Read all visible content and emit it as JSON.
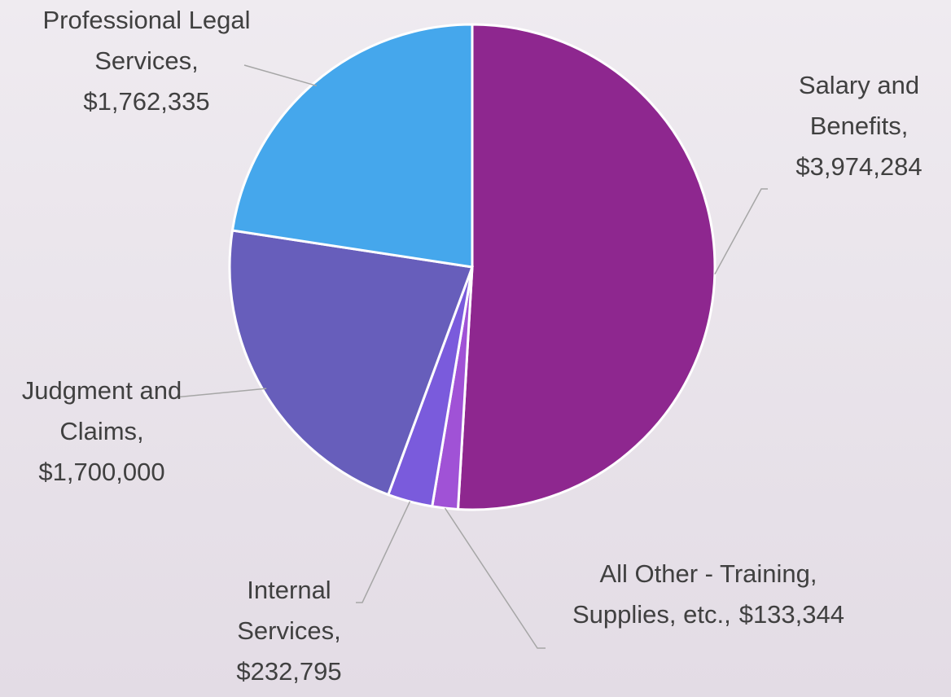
{
  "chart_data": {
    "type": "pie",
    "categories": [
      "Salary and Benefits,",
      "All Other - Training, Supplies, etc.,",
      "Internal Services,",
      "Judgment and Claims,",
      "Professional Legal Services,"
    ],
    "values": [
      3974284,
      133344,
      232795,
      1700000,
      1762335
    ],
    "value_labels": [
      "$3,974,284",
      "$133,344",
      "$232,795",
      "$1,700,000",
      "$1,762,335"
    ],
    "colors": [
      "#8e278f",
      "#a052d6",
      "#7a5bdc",
      "#675ebb",
      "#45a7ec"
    ]
  }
}
